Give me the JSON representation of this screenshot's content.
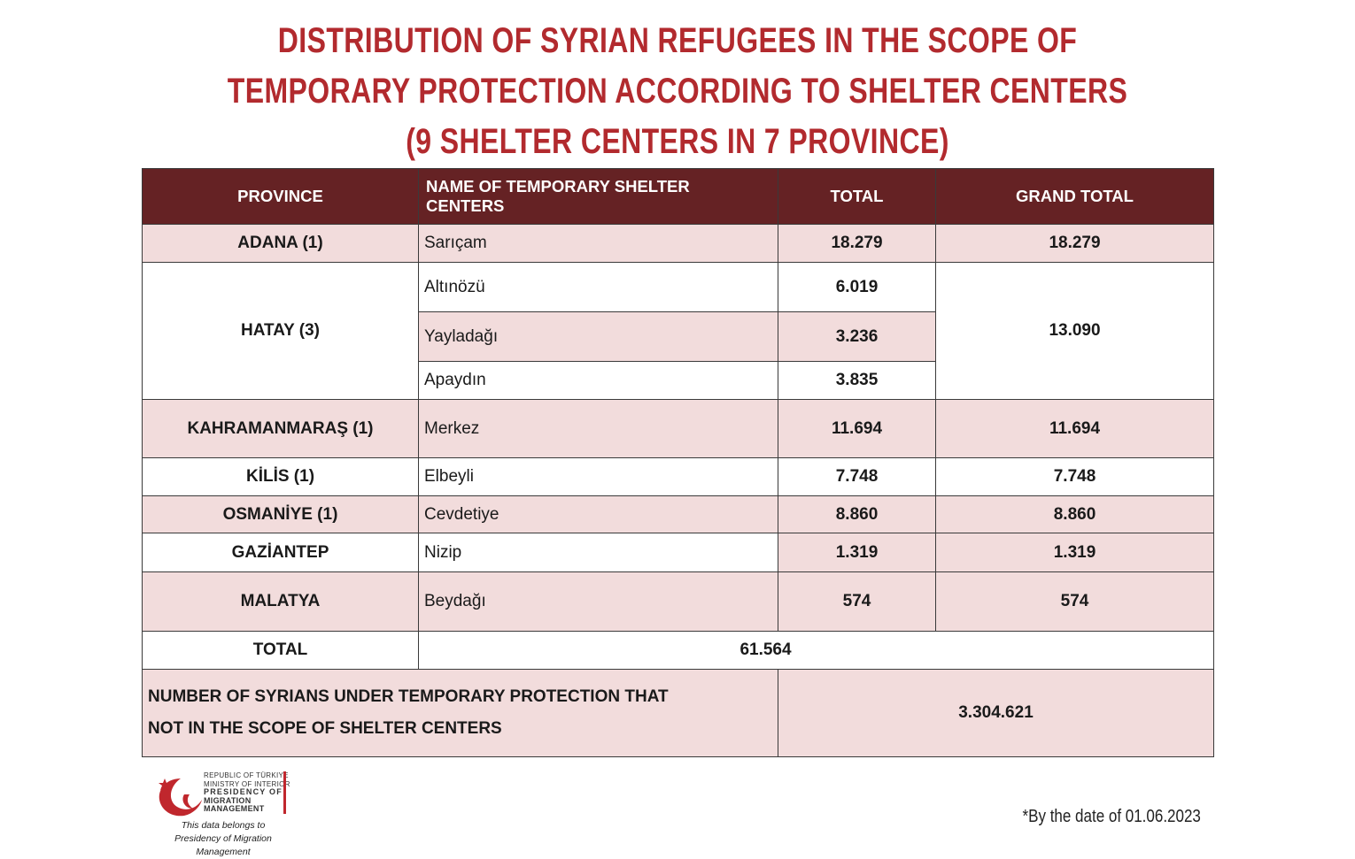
{
  "title": {
    "line1": "DISTRIBUTION OF SYRIAN REFUGEES IN THE SCOPE OF",
    "line2": "TEMPORARY PROTECTION ACCORDING TO SHELTER CENTERS",
    "line3": "(9 SHELTER CENTERS IN 7 PROVINCE)"
  },
  "table": {
    "headers": [
      "PROVINCE",
      "NAME OF TEMPORARY SHELTER CENTERS",
      "TOTAL",
      "GRAND TOTAL"
    ],
    "rows": {
      "adana": {
        "province": "ADANA (1)",
        "center": "Sarıçam",
        "total": "18.279",
        "grand": "18.279"
      },
      "hatay": {
        "province": "HATAY (3)",
        "grand": "13.090",
        "centers": [
          {
            "center": "Altınözü",
            "total": "6.019"
          },
          {
            "center": "Yayladağı",
            "total": "3.236"
          },
          {
            "center": "Apaydın",
            "total": "3.835"
          }
        ]
      },
      "kahramanmaras": {
        "province": "KAHRAMANMARAŞ (1)",
        "center": "Merkez",
        "total": "11.694",
        "grand": "11.694"
      },
      "kilis": {
        "province": "KİLİS (1)",
        "center": "Elbeyli",
        "total": "7.748",
        "grand": "7.748"
      },
      "osmaniye": {
        "province": "OSMANİYE (1)",
        "center": "Cevdetiye",
        "total": "8.860",
        "grand": "8.860"
      },
      "gaziantep": {
        "province": "GAZİANTEP",
        "center": "Nizip",
        "total": "1.319",
        "grand": "1.319"
      },
      "malatya": {
        "province": "MALATYA",
        "center": "Beydağı",
        "total": "574",
        "grand": "574"
      }
    },
    "total_label": "TOTAL",
    "total_value": "61.564",
    "outside_label_line1": "NUMBER OF SYRIANS UNDER TEMPORARY PROTECTION THAT",
    "outside_label_line2": "NOT IN THE SCOPE OF SHELTER CENTERS",
    "outside_value": "3.304.621"
  },
  "logo": {
    "line1": "REPUBLIC OF TÜRKIYE",
    "line2": "MINISTRY OF INTERIOR",
    "line3": "PRESIDENCY OF",
    "line4": "MIGRATION MANAGEMENT",
    "belongs1": "This data belongs to",
    "belongs2": "Presidency of Migration Management"
  },
  "date_note": "*By the date of 01.06.2023",
  "colors": {
    "title": "#b22a2e",
    "header_bg": "#652224",
    "pink_row": "#f2dcdc",
    "grand_total_text": "#8b1c1c"
  }
}
